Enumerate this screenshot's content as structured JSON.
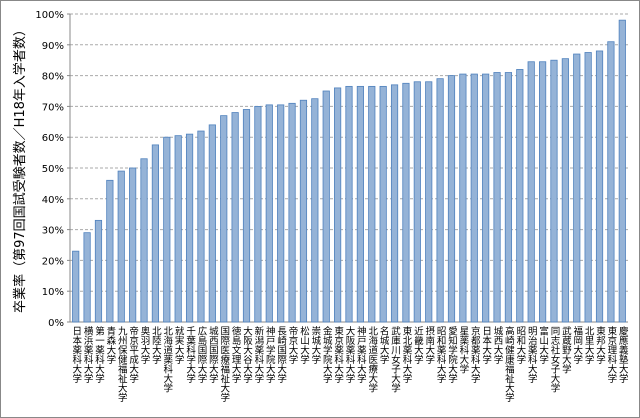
{
  "chart_data": {
    "type": "bar",
    "y_label": "卒業率（第97回国試受験者数／H18年入学者数）",
    "categories": [
      "日本薬科大学",
      "横浜薬科大学",
      "第一薬科大学",
      "青森大学",
      "九州保健福祉大学",
      "帝京平成大学",
      "奥羽大学",
      "北陸大学",
      "北海道薬科大学",
      "就実大学",
      "千葉科学大学",
      "広島国際大学",
      "城西国際大学",
      "国際医療福祉大学",
      "徳島文理大学",
      "大阪大谷大学",
      "新潟薬科大学",
      "神戸学院大学",
      "長崎国際大学",
      "帝京大学",
      "松山大学",
      "崇城大学",
      "金城学院大学",
      "東京薬科大学",
      "大阪薬科大学",
      "神戸薬科大学",
      "北海道医療大学",
      "名城大学",
      "武庫川女子大学",
      "東北薬科大学",
      "近畿大学",
      "摂南大学",
      "昭和薬科大学",
      "愛知学院大学",
      "星薬科大学",
      "京都薬科大学",
      "日本大学",
      "城西大学",
      "高崎健康福祉大学",
      "昭和大学",
      "明治薬科大学",
      "富山大学",
      "同志社女子大学",
      "武蔵野大学",
      "福岡大学",
      "北里大学",
      "東邦大学",
      "東京理科大学",
      "慶應義塾大学"
    ],
    "values": [
      23,
      29,
      33,
      46,
      49,
      50,
      53,
      57.5,
      60,
      60.5,
      61,
      62,
      64,
      67,
      68,
      69,
      70,
      70.5,
      70.5,
      71,
      72,
      72.5,
      75,
      76,
      76.5,
      76.5,
      76.5,
      76.5,
      77,
      77.5,
      78,
      78,
      79,
      80,
      80.5,
      80.5,
      80.5,
      81,
      81,
      82,
      84.5,
      84.5,
      85,
      85.5,
      87,
      87.5,
      88,
      91,
      98
    ],
    "color": "#95b3d7",
    "edge_color": "#4f81bd",
    "ylim": [
      0,
      100
    ],
    "yticks": [
      {
        "value": 0,
        "label": "0%"
      },
      {
        "value": 10,
        "label": "10%"
      },
      {
        "value": 20,
        "label": "20%"
      },
      {
        "value": 30,
        "label": "30%"
      },
      {
        "value": 40,
        "label": "40%"
      },
      {
        "value": 50,
        "label": "50%"
      },
      {
        "value": 60,
        "label": "60%"
      },
      {
        "value": 70,
        "label": "70%"
      },
      {
        "value": 80,
        "label": "80%"
      },
      {
        "value": 90,
        "label": "90%"
      },
      {
        "value": 100,
        "label": "100%"
      }
    ],
    "grid": true
  }
}
